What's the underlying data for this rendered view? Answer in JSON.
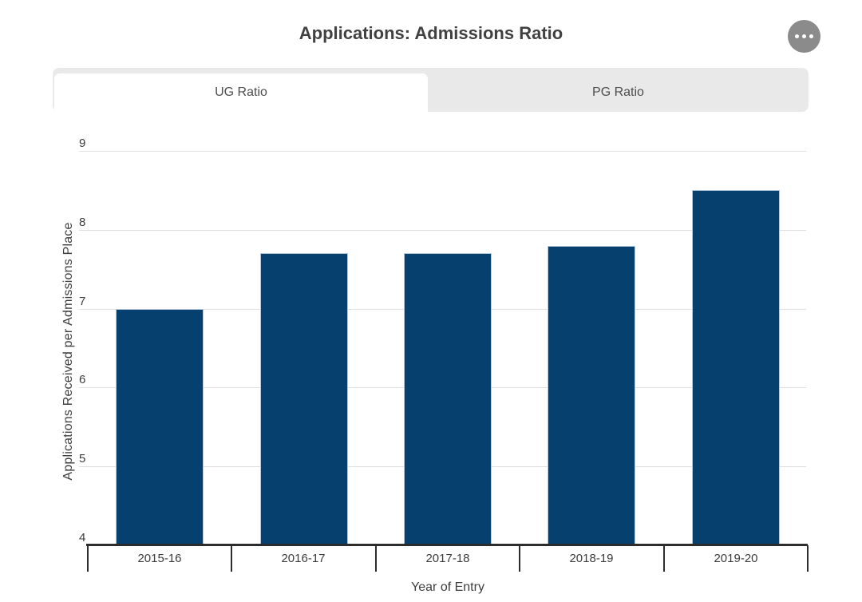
{
  "header": {
    "title": "Applications: Admissions Ratio"
  },
  "icons": {
    "more_options": "ellipsis-icon"
  },
  "tabs": [
    {
      "label": "UG Ratio",
      "active": true
    },
    {
      "label": "PG Ratio",
      "active": false
    }
  ],
  "colors": {
    "bar": "#05406f",
    "bar_edge": "#b7c9da",
    "grid": "#e0e0e0",
    "axis": "#2c2c2c",
    "tab_bg": "#e9e9e9",
    "tab_active_bg": "#ffffff",
    "button_bg": "#8b8b8b",
    "text": "#3c3c3c"
  },
  "chart_data": {
    "type": "bar",
    "title": "Applications: Admissions Ratio",
    "categories": [
      "2015-16",
      "2016-17",
      "2017-18",
      "2018-19",
      "2019-20"
    ],
    "values": [
      7.0,
      7.7,
      7.7,
      7.8,
      8.5
    ],
    "xlabel": "Year of Entry",
    "ylabel": "Applications Received per Admissions Place",
    "ylim": [
      4,
      9
    ],
    "yticks": [
      4,
      5,
      6,
      7,
      8,
      9
    ],
    "grid": "horizontal",
    "legend": "none",
    "series_name": "UG Ratio"
  }
}
